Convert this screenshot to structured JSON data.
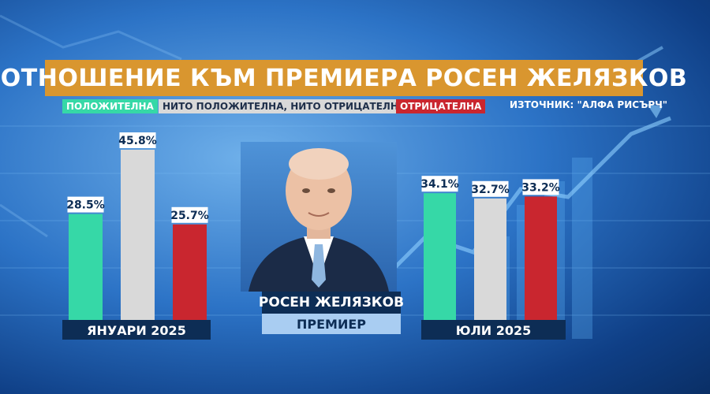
{
  "title": "ОТНОШЕНИЕ КЪМ ПРЕМИЕРА РОСЕН ЖЕЛЯЗКОВ",
  "legend": {
    "positive": "ПОЛОЖИТЕЛНА",
    "neutral": "НИТО ПОЛОЖИТЕЛНА, НИТО ОТРИЦАТЕЛНА",
    "negative": "ОТРИЦАТЕЛНА"
  },
  "source": "ИЗТОЧНИК: \"АЛФА РИСЪРЧ\"",
  "person": {
    "name": "РОСЕН ЖЕЛЯЗКОВ",
    "role": "ПРЕМИЕР"
  },
  "colors": {
    "positive": "#36d8a7",
    "neutral": "#d9d9d9",
    "negative": "#c9262f",
    "title_bar": "#d9962f",
    "label_bg": "#0d2d55"
  },
  "chart_data": [
    {
      "type": "bar",
      "title": "ЯНУАРИ 2025",
      "categories": [
        "ПОЛОЖИТЕЛНА",
        "НИТО ПОЛОЖИТЕЛНА, НИТО ОТРИЦАТЕЛНА",
        "ОТРИЦАТЕЛНА"
      ],
      "values": [
        28.5,
        45.8,
        25.7
      ],
      "value_labels": [
        "28.5%",
        "45.8%",
        "25.7%"
      ]
    },
    {
      "type": "bar",
      "title": "ЮЛИ 2025",
      "categories": [
        "ПОЛОЖИТЕЛНА",
        "НИТО ПОЛОЖИТЕЛНА, НИТО ОТРИЦАТЕЛНА",
        "ОТРИЦАТЕЛНА"
      ],
      "values": [
        34.1,
        32.7,
        33.2
      ],
      "value_labels": [
        "34.1%",
        "32.7%",
        "33.2%"
      ]
    }
  ]
}
